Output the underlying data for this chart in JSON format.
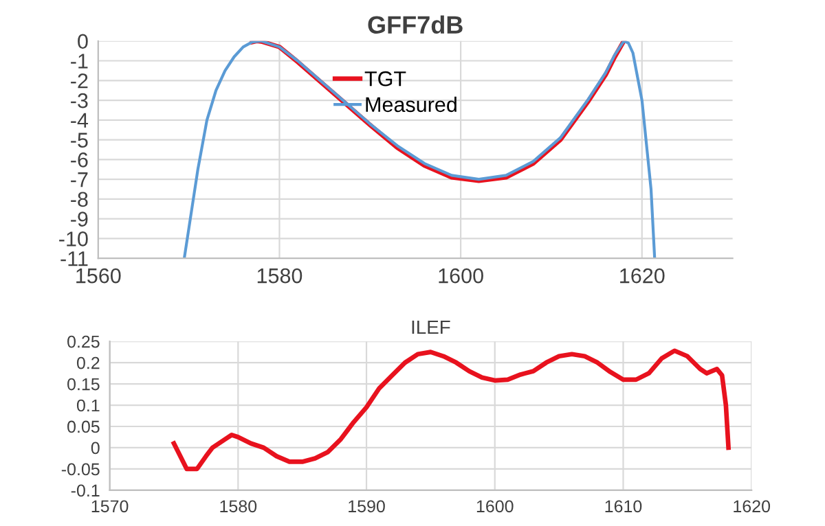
{
  "chart_data": [
    {
      "type": "line",
      "title": "GFF7dB",
      "xlim": [
        1560,
        1630
      ],
      "xticks": [
        1560,
        1580,
        1600,
        1620
      ],
      "ylim": [
        -11,
        0
      ],
      "yticks": [
        0,
        -1,
        -2,
        -3,
        -4,
        -5,
        -6,
        -7,
        -8,
        -9,
        -10,
        -11
      ],
      "grid": true,
      "legend": "top",
      "line_style": "solid",
      "marker": "none",
      "series": [
        {
          "name": "TGT",
          "color": "#e8121e",
          "x": [
            1577,
            1577.5,
            1578,
            1580,
            1582,
            1585,
            1588,
            1590,
            1593,
            1596,
            1599,
            1602,
            1605,
            1608,
            1611,
            1614,
            1616,
            1617,
            1618
          ],
          "values": [
            -0.05,
            0,
            -0.02,
            -0.3,
            -1.05,
            -2.25,
            -3.45,
            -4.25,
            -5.4,
            -6.3,
            -6.9,
            -7.07,
            -6.9,
            -6.2,
            -5.0,
            -3.1,
            -1.7,
            -0.8,
            0
          ]
        },
        {
          "name": "Measured",
          "color": "#5b9bd5",
          "x": [
            1569.5,
            1570,
            1571,
            1572,
            1573,
            1574,
            1575,
            1576,
            1577,
            1578,
            1580,
            1582,
            1585,
            1588,
            1590,
            1593,
            1596,
            1599,
            1602,
            1605,
            1608,
            1611,
            1614,
            1616,
            1617,
            1618,
            1618.5,
            1619,
            1620,
            1621,
            1621.4
          ],
          "values": [
            -11,
            -9.5,
            -6.5,
            -4,
            -2.5,
            -1.5,
            -0.8,
            -0.3,
            -0.05,
            0,
            -0.3,
            -1,
            -2.2,
            -3.4,
            -4.2,
            -5.3,
            -6.2,
            -6.8,
            -7.0,
            -6.8,
            -6.1,
            -4.9,
            -3.0,
            -1.6,
            -0.7,
            0,
            -0.1,
            -0.6,
            -3,
            -7.5,
            -11
          ]
        }
      ]
    },
    {
      "type": "line",
      "title": "ILEF",
      "xlim": [
        1570,
        1620
      ],
      "xticks": [
        1570,
        1580,
        1590,
        1600,
        1610,
        1620
      ],
      "ylim": [
        -0.1,
        0.25
      ],
      "yticks": [
        -0.1,
        -0.05,
        0,
        0.05,
        0.1,
        0.15,
        0.2,
        0.25
      ],
      "grid": true,
      "legend": false,
      "line_style": "solid",
      "marker": "none",
      "series": [
        {
          "color": "#e8121e",
          "x": [
            1575,
            1576,
            1576.8,
            1577.5,
            1578,
            1579,
            1579.5,
            1580,
            1581,
            1582,
            1583,
            1584,
            1585,
            1586,
            1587,
            1588,
            1589,
            1590,
            1591,
            1592,
            1593,
            1594,
            1595,
            1596,
            1597,
            1598,
            1599,
            1600,
            1601,
            1602,
            1603,
            1604,
            1605,
            1606,
            1607,
            1608,
            1609,
            1610,
            1611,
            1612,
            1613,
            1614,
            1615,
            1616,
            1616.5,
            1617.3,
            1617.7,
            1618,
            1618.2
          ],
          "values": [
            0.01,
            -0.05,
            -0.05,
            -0.02,
            0,
            0.02,
            0.03,
            0.025,
            0.01,
            0.0,
            -0.02,
            -0.033,
            -0.033,
            -0.025,
            -0.01,
            0.02,
            0.06,
            0.095,
            0.14,
            0.17,
            0.2,
            0.22,
            0.225,
            0.215,
            0.2,
            0.18,
            0.165,
            0.158,
            0.16,
            0.172,
            0.18,
            0.2,
            0.215,
            0.22,
            0.215,
            0.2,
            0.178,
            0.16,
            0.16,
            0.175,
            0.21,
            0.228,
            0.215,
            0.185,
            0.175,
            0.185,
            0.17,
            0.1,
            0.0
          ]
        }
      ]
    }
  ]
}
